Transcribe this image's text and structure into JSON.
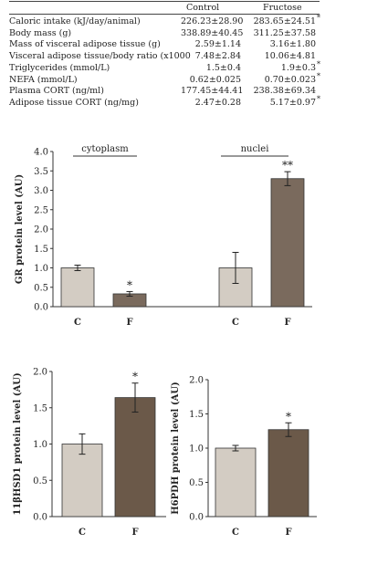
{
  "table": {
    "headers": [
      "",
      "Control",
      "Fructose"
    ],
    "rows": [
      {
        "label": "Caloric intake (kJ/day/animal)",
        "control": "226.23±28.90",
        "fructose": "283.65±24.51",
        "mark": "*"
      },
      {
        "label": "Body mass (g)",
        "control": "338.89±40.45",
        "fructose": "311.25±37.58",
        "mark": ""
      },
      {
        "label": "Mass of visceral adipose tissue (g)",
        "control": "2.59±1.14",
        "fructose": "3.16±1.80",
        "mark": ""
      },
      {
        "label": "Visceral adipose tissue/body ratio (x1000",
        "control": "7.48±2.84",
        "fructose": "10.06±4.81",
        "mark": ""
      },
      {
        "label": "Triglycerides (mmol/L)",
        "control": "1.5±0.4",
        "fructose": "1.9±0.3",
        "mark": "*"
      },
      {
        "label": "NEFA (mmol/L)",
        "control": "0.62±0.025",
        "fructose": "0.70±0.023",
        "mark": "*"
      },
      {
        "label": "Plasma CORT (ng/ml)",
        "control": "177.45±44.41",
        "fructose": "238.38±69.34",
        "mark": ""
      },
      {
        "label": "Adipose tissue CORT (ng/mg)",
        "control": "2.47±0.28",
        "fructose": "5.17±0.97",
        "mark": "*"
      }
    ]
  },
  "chart_data": [
    {
      "type": "bar",
      "ylabel": "GR protein level (AU)",
      "ylim": [
        0,
        4.0
      ],
      "yticks": [
        "0.0",
        "0.5",
        "1.0",
        "1.5",
        "2.0",
        "2.5",
        "3.0",
        "3.5",
        "4.0"
      ],
      "groups": [
        {
          "label": "cytoplasm",
          "bars": [
            {
              "category": "C",
              "value": 1.0,
              "error": 0.07,
              "mark": "",
              "color": "#d3ccc3"
            },
            {
              "category": "F",
              "value": 0.33,
              "error": 0.06,
              "mark": "*",
              "color": "#7a6a5d"
            }
          ]
        },
        {
          "label": "nuclei",
          "bars": [
            {
              "category": "C",
              "value": 1.0,
              "error": 0.4,
              "mark": "",
              "color": "#d3ccc3"
            },
            {
              "category": "F",
              "value": 3.3,
              "error": 0.18,
              "mark": "**",
              "color": "#7a6a5d"
            }
          ]
        }
      ]
    },
    {
      "type": "bar",
      "ylabel": "11βHSD1 protein level (AU)",
      "ylim": [
        0,
        2.0
      ],
      "yticks": [
        "0.0",
        "0.5",
        "1.0",
        "1.5",
        "2.0"
      ],
      "bars": [
        {
          "category": "C",
          "value": 1.0,
          "error": 0.14,
          "mark": "",
          "color": "#d3ccc3"
        },
        {
          "category": "F",
          "value": 1.64,
          "error": 0.2,
          "mark": "*",
          "color": "#6b5949"
        }
      ]
    },
    {
      "type": "bar",
      "ylabel": "H6PDH protein level (AU)",
      "ylim": [
        0,
        2.0
      ],
      "yticks": [
        "0.0",
        "0.5",
        "1.0",
        "1.5",
        "2.0"
      ],
      "bars": [
        {
          "category": "C",
          "value": 1.0,
          "error": 0.04,
          "mark": "",
          "color": "#d3ccc3"
        },
        {
          "category": "F",
          "value": 1.27,
          "error": 0.1,
          "mark": "*",
          "color": "#6b5949"
        }
      ]
    }
  ]
}
